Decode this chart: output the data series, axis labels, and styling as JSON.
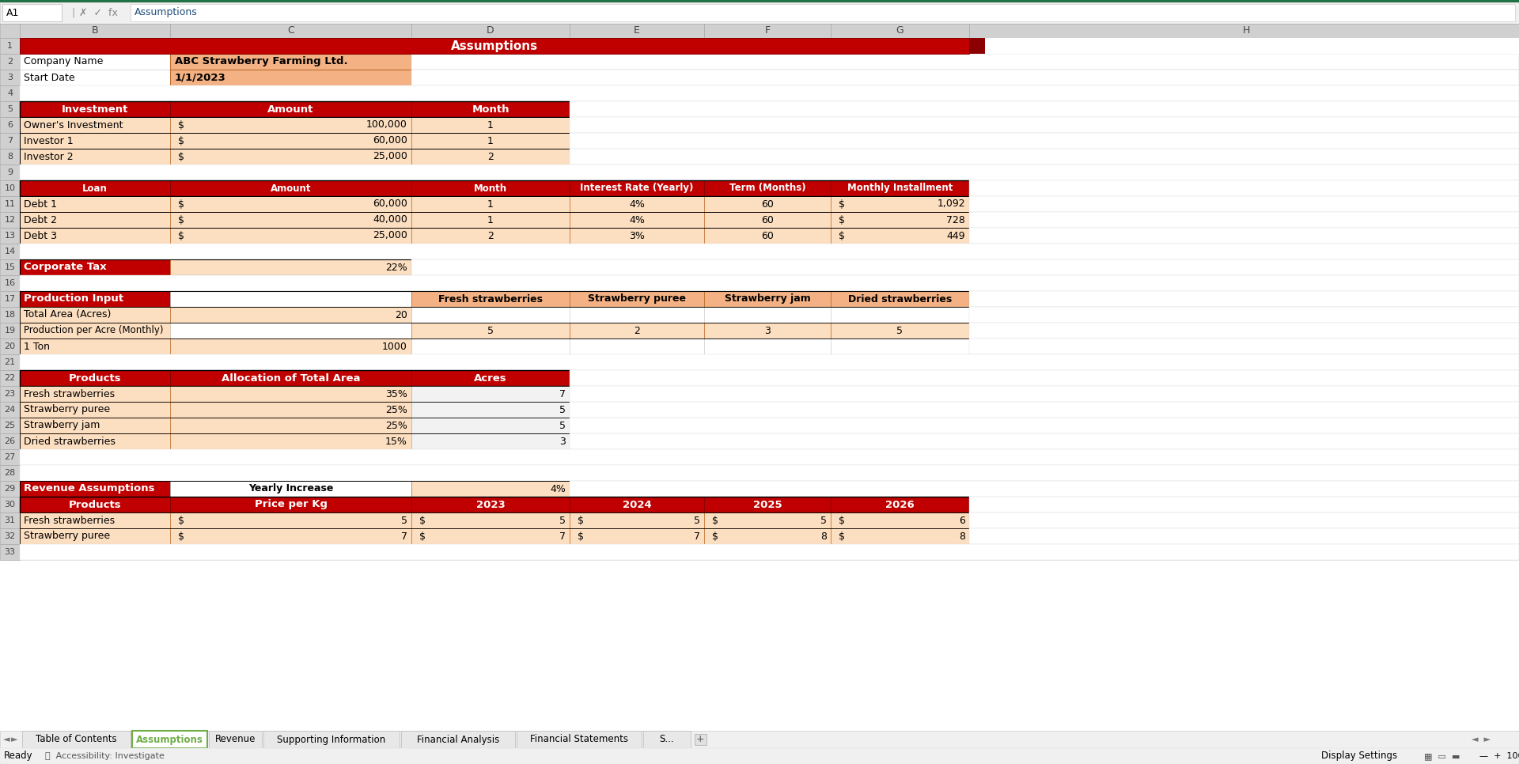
{
  "title": "Assumptions",
  "company_name": "ABC Strawberry Farming Ltd.",
  "start_date": "1/1/2023",
  "investment_labels": [
    "Owner's Investment",
    "Investor 1",
    "Investor 2"
  ],
  "investment_amounts": [
    "100,000",
    "60,000",
    "25,000"
  ],
  "investment_months": [
    "1",
    "1",
    "2"
  ],
  "loan_names": [
    "Debt 1",
    "Debt 2",
    "Debt 3"
  ],
  "loan_amounts": [
    "60,000",
    "40,000",
    "25,000"
  ],
  "loan_months": [
    "1",
    "1",
    "2"
  ],
  "loan_rates": [
    "4%",
    "4%",
    "3%"
  ],
  "loan_terms": [
    "60",
    "60",
    "60"
  ],
  "loan_installments": [
    "1,092",
    "728",
    "449"
  ],
  "corporate_tax": "22%",
  "prod_input_headers": [
    "Fresh strawberries",
    "Strawberry puree",
    "Strawberry jam",
    "Dried strawberries"
  ],
  "prod_total_area": "20",
  "prod_per_acre": [
    "5",
    "2",
    "3",
    "5"
  ],
  "prod_ton": "1000",
  "products": [
    "Fresh strawberries",
    "Strawberry puree",
    "Strawberry jam",
    "Dried strawberries"
  ],
  "prod_alloc": [
    "35%",
    "25%",
    "25%",
    "15%"
  ],
  "prod_acres": [
    "7",
    "5",
    "5",
    "3"
  ],
  "rev_yearly_increase": "4%",
  "rev_products": [
    "Fresh strawberries",
    "Strawberry puree"
  ],
  "rev_price_kg": [
    "5",
    "7"
  ],
  "rev_2023": [
    "5",
    "7"
  ],
  "rev_2024": [
    "5",
    "7"
  ],
  "rev_2025": [
    "5",
    "8"
  ],
  "rev_2026": [
    "6",
    "8"
  ],
  "sheet_tabs": [
    "Table of Contents",
    "Assumptions",
    "Revenue",
    "Supporting Information",
    "Financial Analysis",
    "Financial Statements",
    "S..."
  ],
  "active_tab": "Assumptions",
  "RED": "#C00000",
  "ORANGE": "#F4B183",
  "LIGHT_ORANGE": "#FCDEC0",
  "WHITE": "#FFFFFF",
  "BLACK": "#000000",
  "GRAY_HDR": "#D0D0D0",
  "LIGHT_GRAY": "#F2F2F2",
  "GREEN_TOP": "#217346",
  "GREEN_TAB": "#70AD47"
}
